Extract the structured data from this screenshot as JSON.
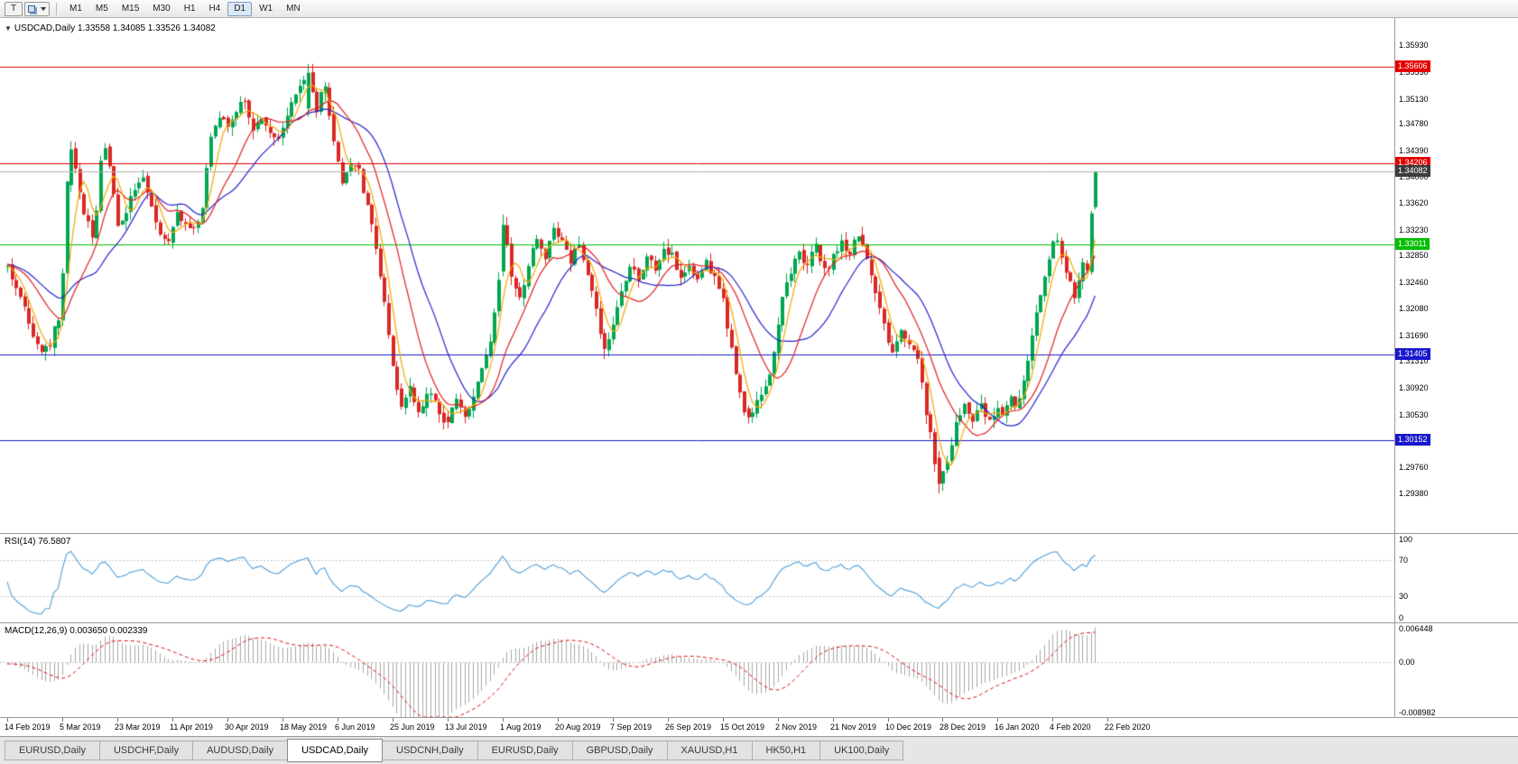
{
  "data_note": "MetaTrader-style chart window; price path and key candles digitized from screenshot, daily candles synthesized along that path",
  "toolbar": {
    "tool_label": "T",
    "timeframes": [
      {
        "label": "M1",
        "active": false
      },
      {
        "label": "M5",
        "active": false
      },
      {
        "label": "M15",
        "active": false
      },
      {
        "label": "M30",
        "active": false
      },
      {
        "label": "H1",
        "active": false
      },
      {
        "label": "H4",
        "active": false
      },
      {
        "label": "D1",
        "active": true
      },
      {
        "label": "W1",
        "active": false
      },
      {
        "label": "MN",
        "active": false
      }
    ]
  },
  "colors": {
    "background": "#ffffff",
    "candle_up": "#00a651",
    "candle_down": "#d92823",
    "ma_fast": "#f2a900",
    "ma_mid": "#e02020",
    "ma_slow": "#2626cc",
    "rsi_line": "#4f9fd8",
    "macd_histogram": "#a9a9a9",
    "macd_signal": "#e01010",
    "level_red": "#e40000",
    "level_green": "#00bf00",
    "level_blue": "#1818cc",
    "price_box": "#3c3c3c"
  },
  "chart_data": {
    "type": "candlestick",
    "symbol": "USDCAD",
    "timeframe": "Daily",
    "header": {
      "collapse_icon": "▼",
      "symbol": "USDCAD,Daily",
      "ohlc": "1.33558 1.34085 1.33526 1.34082"
    },
    "ohlc_display": {
      "open": "1.33558",
      "high": "1.34085",
      "low": "1.33526",
      "close": "1.34082"
    },
    "price_axis_labels": [
      "1.35930",
      "1.35530",
      "1.35130",
      "1.34780",
      "1.34390",
      "1.34000",
      "1.33620",
      "1.33230",
      "1.32850",
      "1.32460",
      "1.32080",
      "1.31690",
      "1.31310",
      "1.30920",
      "1.30530",
      "1.30150",
      "1.29760",
      "1.29380"
    ],
    "levels": [
      {
        "price": 1.35606,
        "label": "1.35606",
        "color": "#e40000",
        "type": "resistance"
      },
      {
        "price": 1.34206,
        "label": "1.34206",
        "color": "#e40000",
        "type": "resistance"
      },
      {
        "price": 1.34082,
        "label": "1.34082",
        "color": "#3c3c3c",
        "line_color": "#b0b0b0",
        "type": "current-price"
      },
      {
        "price": 1.33011,
        "label": "1.33011",
        "color": "#00bf00",
        "type": "support"
      },
      {
        "price": 1.31405,
        "label": "1.31405",
        "color": "#1818cc",
        "type": "support"
      },
      {
        "price": 1.30152,
        "label": "1.30152",
        "color": "#1818cc",
        "type": "support"
      }
    ],
    "date_labels": [
      "14 Feb 2019",
      "5 Mar 2019",
      "23 Mar 2019",
      "11 Apr 2019",
      "30 Apr 2019",
      "18 May 2019",
      "6 Jun 2019",
      "25 Jun 2019",
      "13 Jul 2019",
      "1 Aug 2019",
      "20 Aug 2019",
      "7 Sep 2019",
      "26 Sep 2019",
      "15 Oct 2019",
      "2 Nov 2019",
      "21 Nov 2019",
      "10 Dec 2019",
      "28 Dec 2019",
      "16 Jan 2020",
      "4 Feb 2020",
      "22 Feb 2020"
    ],
    "bars_per_label": 13,
    "num_bars": 258,
    "moving_averages": [
      {
        "period": 5,
        "color": "#f2a900"
      },
      {
        "period": 13,
        "color": "#e02020"
      },
      {
        "period": 21,
        "color": "#2626cc"
      }
    ],
    "indicators": [
      {
        "name": "RSI",
        "label": "RSI(14) 76.5807",
        "period": 14,
        "current_value": "76.5807",
        "axis_labels": [
          "100",
          "70",
          "30",
          "0"
        ],
        "levels": [
          70,
          30
        ],
        "range": [
          0,
          100
        ]
      },
      {
        "name": "MACD",
        "label": "MACD(12,26,9) 0.003650 0.002339",
        "params": [
          12,
          26,
          9
        ],
        "current_values": [
          "0.003650",
          "0.002339"
        ],
        "axis_labels": [
          "0.006448",
          "0.00",
          "-0.008982"
        ],
        "range": [
          -0.008982,
          0.006448
        ]
      }
    ],
    "key_bars": {
      "15": [
        1.3388,
        1.3452,
        1.3378,
        1.344
      ],
      "71": [
        1.35,
        1.3565,
        1.3488,
        1.3552
      ],
      "104": [
        1.305,
        1.3058,
        1.3033,
        1.3042
      ],
      "117": [
        1.3262,
        1.3345,
        1.3255,
        1.333
      ],
      "141": [
        1.3172,
        1.3178,
        1.3134,
        1.3149
      ],
      "175": [
        1.3062,
        1.3066,
        1.304,
        1.3049
      ],
      "220": [
        1.299,
        1.3,
        1.2938,
        1.2952
      ],
      "257": [
        1.33558,
        1.34085,
        1.33526,
        1.34082
      ]
    },
    "price_path_anchors": [
      [
        0,
        1.3268
      ],
      [
        2,
        1.324
      ],
      [
        4,
        1.3205
      ],
      [
        6,
        1.3165
      ],
      [
        8,
        1.3148
      ],
      [
        10,
        1.3158
      ],
      [
        12,
        1.3195
      ],
      [
        13,
        1.326
      ],
      [
        14,
        1.3392
      ],
      [
        15,
        1.344
      ],
      [
        16,
        1.341
      ],
      [
        18,
        1.335
      ],
      [
        20,
        1.331
      ],
      [
        21,
        1.335
      ],
      [
        22,
        1.342
      ],
      [
        23,
        1.3438
      ],
      [
        24,
        1.341
      ],
      [
        26,
        1.333
      ],
      [
        28,
        1.335
      ],
      [
        30,
        1.3385
      ],
      [
        32,
        1.34
      ],
      [
        34,
        1.3355
      ],
      [
        36,
        1.332
      ],
      [
        38,
        1.331
      ],
      [
        40,
        1.3345
      ],
      [
        42,
        1.3335
      ],
      [
        44,
        1.332
      ],
      [
        46,
        1.3355
      ],
      [
        47,
        1.3415
      ],
      [
        48,
        1.346
      ],
      [
        50,
        1.349
      ],
      [
        52,
        1.3475
      ],
      [
        54,
        1.3495
      ],
      [
        56,
        1.3512
      ],
      [
        58,
        1.347
      ],
      [
        60,
        1.3485
      ],
      [
        62,
        1.347
      ],
      [
        64,
        1.345
      ],
      [
        66,
        1.3492
      ],
      [
        68,
        1.3515
      ],
      [
        70,
        1.3542
      ],
      [
        71,
        1.3552
      ],
      [
        72,
        1.3522
      ],
      [
        73,
        1.3498
      ],
      [
        74,
        1.352
      ],
      [
        75,
        1.3528
      ],
      [
        76,
        1.349
      ],
      [
        77,
        1.3452
      ],
      [
        78,
        1.342
      ],
      [
        79,
        1.3392
      ],
      [
        80,
        1.3405
      ],
      [
        81,
        1.3422
      ],
      [
        82,
        1.3418
      ],
      [
        83,
        1.3408
      ],
      [
        84,
        1.338
      ],
      [
        85,
        1.3365
      ],
      [
        86,
        1.3335
      ],
      [
        87,
        1.33
      ],
      [
        88,
        1.326
      ],
      [
        89,
        1.3215
      ],
      [
        90,
        1.3165
      ],
      [
        91,
        1.3118
      ],
      [
        92,
        1.3085
      ],
      [
        93,
        1.3068
      ],
      [
        94,
        1.3082
      ],
      [
        95,
        1.3095
      ],
      [
        96,
        1.3075
      ],
      [
        97,
        1.3058
      ],
      [
        98,
        1.307
      ],
      [
        99,
        1.3082
      ],
      [
        100,
        1.3088
      ],
      [
        101,
        1.3068
      ],
      [
        102,
        1.3052
      ],
      [
        103,
        1.3045
      ],
      [
        104,
        1.3042
      ],
      [
        105,
        1.3058
      ],
      [
        106,
        1.3072
      ],
      [
        107,
        1.306
      ],
      [
        108,
        1.305
      ],
      [
        109,
        1.3065
      ],
      [
        110,
        1.3082
      ],
      [
        111,
        1.3098
      ],
      [
        112,
        1.3118
      ],
      [
        113,
        1.314
      ],
      [
        114,
        1.3165
      ],
      [
        115,
        1.32
      ],
      [
        116,
        1.3255
      ],
      [
        117,
        1.333
      ],
      [
        118,
        1.3295
      ],
      [
        119,
        1.3258
      ],
      [
        120,
        1.3235
      ],
      [
        121,
        1.3222
      ],
      [
        122,
        1.324
      ],
      [
        123,
        1.3268
      ],
      [
        124,
        1.3292
      ],
      [
        125,
        1.3312
      ],
      [
        126,
        1.3298
      ],
      [
        127,
        1.3285
      ],
      [
        128,
        1.3308
      ],
      [
        129,
        1.333
      ],
      [
        130,
        1.3318
      ],
      [
        131,
        1.3305
      ],
      [
        132,
        1.3288
      ],
      [
        133,
        1.3275
      ],
      [
        134,
        1.329
      ],
      [
        135,
        1.3302
      ],
      [
        136,
        1.3275
      ],
      [
        137,
        1.3255
      ],
      [
        138,
        1.3232
      ],
      [
        139,
        1.3208
      ],
      [
        140,
        1.3172
      ],
      [
        141,
        1.3149
      ],
      [
        142,
        1.3162
      ],
      [
        143,
        1.318
      ],
      [
        144,
        1.3205
      ],
      [
        145,
        1.3232
      ],
      [
        146,
        1.3252
      ],
      [
        147,
        1.3272
      ],
      [
        148,
        1.3262
      ],
      [
        149,
        1.3248
      ],
      [
        150,
        1.3268
      ],
      [
        151,
        1.3288
      ],
      [
        152,
        1.3278
      ],
      [
        153,
        1.3265
      ],
      [
        154,
        1.3282
      ],
      [
        155,
        1.3298
      ],
      [
        156,
        1.3288
      ],
      [
        157,
        1.3292
      ],
      [
        158,
        1.327
      ],
      [
        159,
        1.3252
      ],
      [
        160,
        1.3262
      ],
      [
        161,
        1.3272
      ],
      [
        162,
        1.3258
      ],
      [
        163,
        1.3248
      ],
      [
        164,
        1.3262
      ],
      [
        165,
        1.3278
      ],
      [
        166,
        1.3262
      ],
      [
        167,
        1.3255
      ],
      [
        168,
        1.3238
      ],
      [
        169,
        1.3225
      ],
      [
        170,
        1.3182
      ],
      [
        171,
        1.3148
      ],
      [
        172,
        1.3112
      ],
      [
        173,
        1.3082
      ],
      [
        174,
        1.3062
      ],
      [
        175,
        1.3049
      ],
      [
        176,
        1.3058
      ],
      [
        177,
        1.3072
      ],
      [
        178,
        1.3085
      ],
      [
        179,
        1.3092
      ],
      [
        180,
        1.3112
      ],
      [
        181,
        1.3148
      ],
      [
        182,
        1.3185
      ],
      [
        183,
        1.3222
      ],
      [
        184,
        1.3248
      ],
      [
        185,
        1.3262
      ],
      [
        186,
        1.3278
      ],
      [
        187,
        1.3292
      ],
      [
        188,
        1.3278
      ],
      [
        189,
        1.3268
      ],
      [
        190,
        1.3288
      ],
      [
        191,
        1.3302
      ],
      [
        192,
        1.3278
      ],
      [
        193,
        1.3262
      ],
      [
        194,
        1.3272
      ],
      [
        195,
        1.3282
      ],
      [
        196,
        1.3295
      ],
      [
        197,
        1.3308
      ],
      [
        198,
        1.3298
      ],
      [
        199,
        1.3288
      ],
      [
        200,
        1.3305
      ],
      [
        201,
        1.3312
      ],
      [
        202,
        1.3295
      ],
      [
        203,
        1.3278
      ],
      [
        204,
        1.3252
      ],
      [
        205,
        1.3228
      ],
      [
        206,
        1.3205
      ],
      [
        207,
        1.3188
      ],
      [
        208,
        1.3155
      ],
      [
        209,
        1.3142
      ],
      [
        210,
        1.3158
      ],
      [
        211,
        1.3172
      ],
      [
        212,
        1.3162
      ],
      [
        213,
        1.3152
      ],
      [
        214,
        1.3145
      ],
      [
        215,
        1.3138
      ],
      [
        216,
        1.3098
      ],
      [
        217,
        1.3058
      ],
      [
        218,
        1.3022
      ],
      [
        219,
        1.2985
      ],
      [
        220,
        1.2952
      ],
      [
        221,
        1.2968
      ],
      [
        222,
        1.2985
      ],
      [
        223,
        1.3012
      ],
      [
        224,
        1.3042
      ],
      [
        225,
        1.3058
      ],
      [
        226,
        1.3068
      ],
      [
        227,
        1.3052
      ],
      [
        228,
        1.3042
      ],
      [
        229,
        1.3058
      ],
      [
        230,
        1.3068
      ],
      [
        231,
        1.3055
      ],
      [
        232,
        1.3045
      ],
      [
        233,
        1.3052
      ],
      [
        234,
        1.3062
      ],
      [
        235,
        1.3048
      ],
      [
        236,
        1.3072
      ],
      [
        237,
        1.3085
      ],
      [
        238,
        1.3068
      ],
      [
        239,
        1.3082
      ],
      [
        240,
        1.3108
      ],
      [
        241,
        1.3135
      ],
      [
        242,
        1.3165
      ],
      [
        243,
        1.3198
      ],
      [
        244,
        1.3228
      ],
      [
        245,
        1.3258
      ],
      [
        246,
        1.3285
      ],
      [
        247,
        1.3302
      ],
      [
        248,
        1.3312
      ],
      [
        249,
        1.3288
      ],
      [
        250,
        1.3262
      ],
      [
        251,
        1.3242
      ],
      [
        252,
        1.3228
      ],
      [
        253,
        1.3252
      ],
      [
        254,
        1.3272
      ],
      [
        255,
        1.3268
      ],
      [
        256,
        1.3352
      ],
      [
        257,
        1.34082
      ]
    ]
  },
  "tabs": [
    {
      "label": "EURUSD,Daily",
      "active": false
    },
    {
      "label": "USDCHF,Daily",
      "active": false
    },
    {
      "label": "AUDUSD,Daily",
      "active": false
    },
    {
      "label": "USDCAD,Daily",
      "active": true
    },
    {
      "label": "USDCNH,Daily",
      "active": false
    },
    {
      "label": "EURUSD,Daily",
      "active": false
    },
    {
      "label": "GBPUSD,Daily",
      "active": false
    },
    {
      "label": "XAUUSD,H1",
      "active": false
    },
    {
      "label": "HK50,H1",
      "active": false
    },
    {
      "label": "UK100,Daily",
      "active": false
    }
  ]
}
